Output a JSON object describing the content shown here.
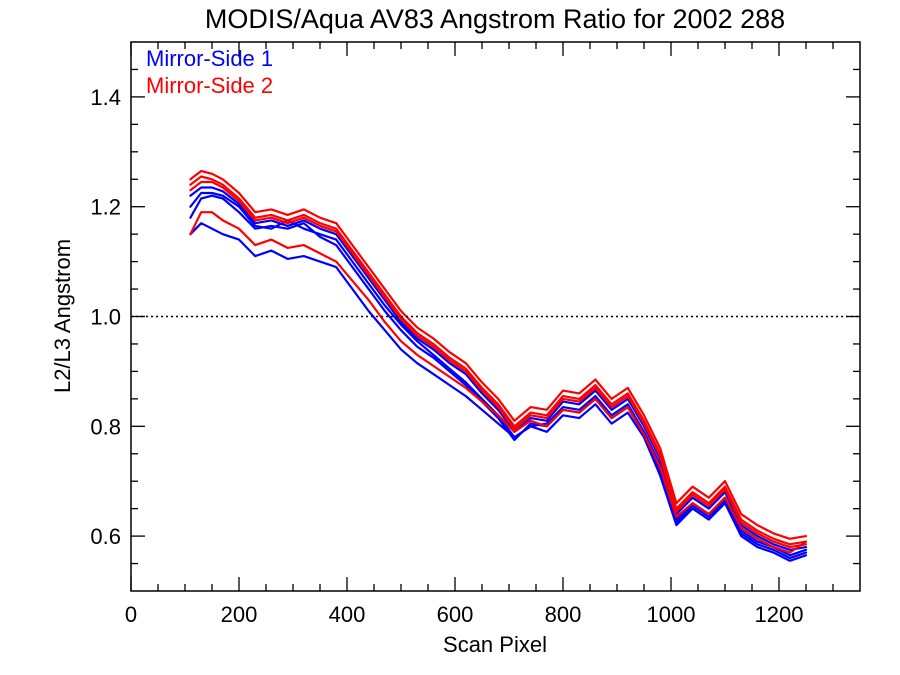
{
  "chart_data": {
    "type": "line",
    "title": "MODIS/Aqua AV83 Angstrom Ratio for 2002 288",
    "xlabel": "Scan Pixel",
    "ylabel": "L2/L3 Angstrom",
    "xlim": [
      0,
      1350
    ],
    "ylim": [
      0.5,
      1.5
    ],
    "xticks": [
      0,
      200,
      400,
      600,
      800,
      1000,
      1200
    ],
    "yticks": [
      0.6,
      0.8,
      1.0,
      1.2,
      1.4
    ],
    "xtick_labels": [
      "0",
      "200",
      "400",
      "600",
      "800",
      "1000",
      "1200"
    ],
    "ytick_labels": [
      "0.6",
      "0.8",
      "1.0",
      "1.2",
      "1.4"
    ],
    "reference_line": {
      "y": 1.0,
      "style": "dotted"
    },
    "grid": false,
    "legend_position": "top-left",
    "colors": {
      "mirror_side_1": "#0000ff",
      "mirror_side_2": "#ff0000",
      "axes": "#000000"
    },
    "legend": [
      {
        "label": "Mirror-Side 1",
        "color": "#0000ff"
      },
      {
        "label": "Mirror-Side 2",
        "color": "#ff0000"
      }
    ],
    "x": [
      110,
      130,
      150,
      170,
      200,
      230,
      260,
      290,
      320,
      350,
      380,
      410,
      440,
      470,
      500,
      530,
      560,
      590,
      620,
      650,
      680,
      710,
      740,
      770,
      800,
      830,
      860,
      890,
      920,
      950,
      980,
      1010,
      1040,
      1070,
      1100,
      1130,
      1160,
      1190,
      1220,
      1250
    ],
    "series": [
      {
        "group": "Mirror-Side 1",
        "color": "#0000ff",
        "values": [
          1.22,
          1.235,
          1.235,
          1.228,
          1.205,
          1.17,
          1.175,
          1.165,
          1.175,
          1.16,
          1.15,
          1.11,
          1.07,
          1.03,
          0.99,
          0.96,
          0.94,
          0.915,
          0.895,
          0.86,
          0.83,
          0.79,
          0.815,
          0.81,
          0.845,
          0.84,
          0.865,
          0.83,
          0.85,
          0.8,
          0.74,
          0.64,
          0.67,
          0.65,
          0.68,
          0.62,
          0.6,
          0.585,
          0.575,
          0.58
        ]
      },
      {
        "group": "Mirror-Side 1",
        "color": "#0000ff",
        "values": [
          1.2,
          1.225,
          1.225,
          1.22,
          1.2,
          1.165,
          1.16,
          1.175,
          1.16,
          1.15,
          1.14,
          1.1,
          1.06,
          1.02,
          0.985,
          0.955,
          0.93,
          0.905,
          0.88,
          0.85,
          0.82,
          0.78,
          0.8,
          0.805,
          0.835,
          0.83,
          0.855,
          0.82,
          0.84,
          0.79,
          0.73,
          0.63,
          0.66,
          0.64,
          0.67,
          0.61,
          0.59,
          0.58,
          0.565,
          0.575
        ]
      },
      {
        "group": "Mirror-Side 1",
        "color": "#0000ff",
        "values": [
          1.18,
          1.215,
          1.22,
          1.215,
          1.19,
          1.16,
          1.165,
          1.16,
          1.17,
          1.145,
          1.13,
          1.09,
          1.05,
          1.01,
          0.975,
          0.945,
          0.925,
          0.9,
          0.875,
          0.845,
          0.815,
          0.775,
          0.805,
          0.8,
          0.83,
          0.825,
          0.85,
          0.815,
          0.835,
          0.785,
          0.72,
          0.625,
          0.655,
          0.635,
          0.665,
          0.605,
          0.585,
          0.575,
          0.56,
          0.57
        ]
      },
      {
        "group": "Mirror-Side 1",
        "color": "#0000ff",
        "values": [
          1.15,
          1.17,
          1.16,
          1.15,
          1.14,
          1.11,
          1.12,
          1.105,
          1.11,
          1.1,
          1.09,
          1.05,
          1.01,
          0.975,
          0.94,
          0.915,
          0.895,
          0.875,
          0.855,
          0.83,
          0.805,
          0.78,
          0.8,
          0.79,
          0.82,
          0.815,
          0.84,
          0.805,
          0.825,
          0.78,
          0.71,
          0.62,
          0.65,
          0.63,
          0.66,
          0.6,
          0.58,
          0.57,
          0.555,
          0.565
        ]
      },
      {
        "group": "Mirror-Side 2",
        "color": "#ff0000",
        "values": [
          1.24,
          1.255,
          1.25,
          1.24,
          1.215,
          1.18,
          1.185,
          1.175,
          1.185,
          1.17,
          1.16,
          1.12,
          1.08,
          1.04,
          1.0,
          0.97,
          0.95,
          0.925,
          0.905,
          0.87,
          0.84,
          0.8,
          0.825,
          0.82,
          0.855,
          0.85,
          0.875,
          0.84,
          0.86,
          0.81,
          0.75,
          0.65,
          0.68,
          0.66,
          0.69,
          0.63,
          0.61,
          0.595,
          0.585,
          0.59
        ]
      },
      {
        "group": "Mirror-Side 2",
        "color": "#ff0000",
        "values": [
          1.25,
          1.265,
          1.26,
          1.25,
          1.225,
          1.19,
          1.195,
          1.185,
          1.195,
          1.18,
          1.17,
          1.13,
          1.09,
          1.05,
          1.01,
          0.98,
          0.96,
          0.935,
          0.915,
          0.88,
          0.85,
          0.81,
          0.835,
          0.83,
          0.865,
          0.86,
          0.885,
          0.85,
          0.87,
          0.82,
          0.76,
          0.66,
          0.69,
          0.67,
          0.7,
          0.64,
          0.62,
          0.605,
          0.595,
          0.6
        ]
      },
      {
        "group": "Mirror-Side 2",
        "color": "#ff0000",
        "values": [
          1.23,
          1.245,
          1.245,
          1.235,
          1.21,
          1.175,
          1.18,
          1.17,
          1.18,
          1.165,
          1.155,
          1.115,
          1.075,
          1.035,
          0.995,
          0.965,
          0.945,
          0.92,
          0.9,
          0.865,
          0.835,
          0.795,
          0.82,
          0.815,
          0.85,
          0.845,
          0.87,
          0.835,
          0.855,
          0.805,
          0.745,
          0.645,
          0.675,
          0.655,
          0.685,
          0.625,
          0.605,
          0.59,
          0.58,
          0.585
        ]
      },
      {
        "group": "Mirror-Side 2",
        "color": "#ff0000",
        "values": [
          1.15,
          1.19,
          1.19,
          1.175,
          1.16,
          1.13,
          1.14,
          1.125,
          1.13,
          1.115,
          1.1,
          1.065,
          1.03,
          0.99,
          0.955,
          0.93,
          0.91,
          0.89,
          0.87,
          0.845,
          0.82,
          0.79,
          0.81,
          0.8,
          0.83,
          0.825,
          0.85,
          0.815,
          0.835,
          0.785,
          0.725,
          0.635,
          0.66,
          0.64,
          0.67,
          0.615,
          0.595,
          0.58,
          0.57,
          0.59
        ]
      }
    ]
  }
}
